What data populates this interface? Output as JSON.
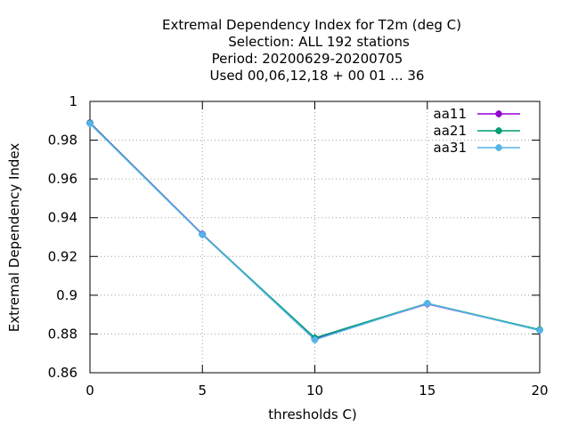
{
  "chart_data": {
    "type": "line",
    "title_lines": [
      "Extremal Dependency Index  for T2m (deg C)",
      "Selection: ALL    192 stations",
      "Period: 20200629-20200705",
      "Used  00,06,12,18 + 00 01 ... 36"
    ],
    "xlabel": "thresholds C)",
    "ylabel": "Extremal Dependency Index",
    "xlim": [
      0,
      20
    ],
    "ylim": [
      0.86,
      1.0
    ],
    "xticks": [
      0,
      5,
      10,
      15,
      20
    ],
    "yticks": [
      0.86,
      0.88,
      0.9,
      0.92,
      0.94,
      0.96,
      0.98,
      1.0
    ],
    "ytick_labels": [
      "0.86",
      "0.88",
      "0.9",
      "0.92",
      "0.94",
      "0.96",
      "0.98",
      "1"
    ],
    "grid": true,
    "legend_position": "top-right",
    "x": [
      0,
      5,
      10,
      15,
      20
    ],
    "series": [
      {
        "name": "aa11",
        "color": "#9400d3",
        "values": [
          0.989,
          0.9315,
          0.8775,
          0.8955,
          0.882
        ]
      },
      {
        "name": "aa21",
        "color": "#009e73",
        "values": [
          0.9888,
          0.9313,
          0.878,
          0.8958,
          0.8822
        ]
      },
      {
        "name": "aa31",
        "color": "#56b4e9",
        "values": [
          0.9885,
          0.9312,
          0.877,
          0.8957,
          0.8818
        ]
      }
    ]
  }
}
